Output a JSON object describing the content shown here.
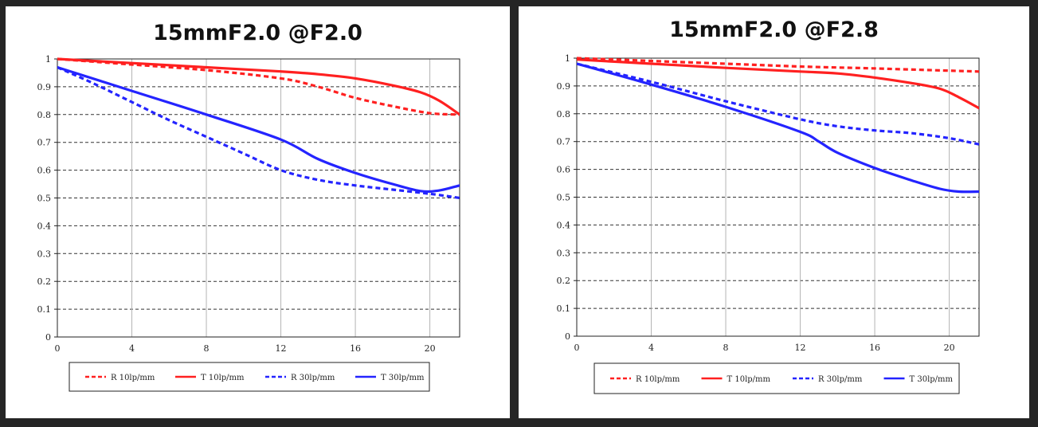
{
  "chart_data": [
    {
      "type": "line",
      "title": "15mmF2.0 @F2.0",
      "xlabel": "",
      "ylabel": "",
      "xlim": [
        0,
        21.6
      ],
      "ylim": [
        0,
        1
      ],
      "xticks": [
        0,
        4,
        8,
        12,
        16,
        20
      ],
      "yticks": [
        0,
        0.1,
        0.2,
        0.3,
        0.4,
        0.5,
        0.6,
        0.7,
        0.8,
        0.9,
        1
      ],
      "xtick_labels": [
        "0",
        "4",
        "8",
        "12",
        "16",
        "20"
      ],
      "ytick_labels": [
        "0",
        "0.1",
        "0.2",
        "0.3",
        "0.4",
        "0.5",
        "0.6",
        "0.7",
        "0.8",
        "0.9",
        "1"
      ],
      "grid": true,
      "legend_position": "bottom-center",
      "series": [
        {
          "name": "R 10lp/mm",
          "color": "#ff2020",
          "dashed": true,
          "x": [
            0,
            4,
            8,
            12,
            14,
            16,
            18,
            20,
            21.6
          ],
          "y": [
            1.0,
            0.98,
            0.96,
            0.93,
            0.9,
            0.86,
            0.83,
            0.805,
            0.8
          ]
        },
        {
          "name": "T 10lp/mm",
          "color": "#ff2020",
          "dashed": false,
          "x": [
            0,
            4,
            8,
            12,
            14,
            16,
            18,
            19.5,
            20.5,
            21.6
          ],
          "y": [
            1.0,
            0.985,
            0.97,
            0.955,
            0.945,
            0.93,
            0.905,
            0.88,
            0.85,
            0.8
          ]
        },
        {
          "name": "R 30lp/mm",
          "color": "#2424ff",
          "dashed": true,
          "x": [
            0,
            2,
            4,
            6,
            8,
            10,
            12,
            14,
            16,
            18,
            20,
            21.6
          ],
          "y": [
            0.97,
            0.91,
            0.845,
            0.78,
            0.72,
            0.66,
            0.6,
            0.565,
            0.545,
            0.53,
            0.515,
            0.5
          ]
        },
        {
          "name": "T 30lp/mm",
          "color": "#2424ff",
          "dashed": false,
          "x": [
            0,
            4,
            8,
            12,
            14,
            16,
            18,
            19.5,
            20.5,
            21.6
          ],
          "y": [
            0.97,
            0.885,
            0.8,
            0.71,
            0.64,
            0.59,
            0.55,
            0.525,
            0.527,
            0.545
          ]
        }
      ]
    },
    {
      "type": "line",
      "title": "15mmF2.0 @F2.8",
      "xlabel": "",
      "ylabel": "",
      "xlim": [
        0,
        21.6
      ],
      "ylim": [
        0,
        1
      ],
      "xticks": [
        0,
        4,
        8,
        12,
        16,
        20
      ],
      "yticks": [
        0,
        0.1,
        0.2,
        0.3,
        0.4,
        0.5,
        0.6,
        0.7,
        0.8,
        0.9,
        1
      ],
      "xtick_labels": [
        "0",
        "4",
        "8",
        "12",
        "16",
        "20"
      ],
      "ytick_labels": [
        "0",
        "0.1",
        "0.2",
        "0.3",
        "0.4",
        "0.5",
        "0.6",
        "0.7",
        "0.8",
        "0.9",
        "1"
      ],
      "grid": true,
      "legend_position": "bottom-center",
      "series": [
        {
          "name": "R 10lp/mm",
          "color": "#ff2020",
          "dashed": true,
          "x": [
            0,
            4,
            8,
            12,
            16,
            20,
            21.6
          ],
          "y": [
            1.0,
            0.99,
            0.98,
            0.97,
            0.963,
            0.955,
            0.952
          ]
        },
        {
          "name": "T 10lp/mm",
          "color": "#ff2020",
          "dashed": false,
          "x": [
            0,
            4,
            8,
            12,
            14,
            16,
            18,
            19.5,
            20.5,
            21.6
          ],
          "y": [
            0.995,
            0.98,
            0.965,
            0.952,
            0.945,
            0.93,
            0.91,
            0.89,
            0.86,
            0.82
          ]
        },
        {
          "name": "R 30lp/mm",
          "color": "#2424ff",
          "dashed": true,
          "x": [
            0,
            4,
            8,
            12,
            14,
            16,
            18,
            20,
            21.6
          ],
          "y": [
            0.98,
            0.915,
            0.845,
            0.78,
            0.755,
            0.74,
            0.73,
            0.712,
            0.69
          ]
        },
        {
          "name": "T 30lp/mm",
          "color": "#2424ff",
          "dashed": false,
          "x": [
            0,
            4,
            8,
            12,
            13,
            14,
            16,
            18,
            19.5,
            20.5,
            21.6
          ],
          "y": [
            0.98,
            0.905,
            0.825,
            0.735,
            0.7,
            0.66,
            0.605,
            0.56,
            0.53,
            0.52,
            0.52
          ]
        }
      ]
    }
  ]
}
